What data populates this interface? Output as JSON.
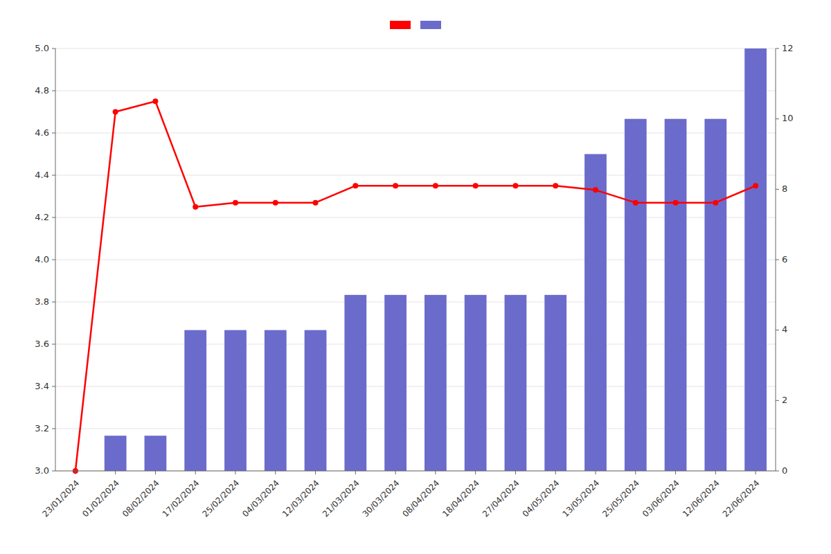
{
  "chart_data": {
    "type": "bar",
    "categories": [
      "23/01/2024",
      "01/02/2024",
      "08/02/2024",
      "17/02/2024",
      "25/02/2024",
      "04/03/2024",
      "12/03/2024",
      "21/03/2024",
      "30/03/2024",
      "08/04/2024",
      "18/04/2024",
      "27/04/2024",
      "04/05/2024",
      "13/05/2024",
      "25/05/2024",
      "03/06/2024",
      "12/06/2024",
      "22/06/2024"
    ],
    "series": [
      {
        "type": "line",
        "color": "#FF0000",
        "marker": "circle",
        "line_style": "solid",
        "axis": "y",
        "values": [
          3.0,
          4.7,
          4.75,
          4.25,
          4.27,
          4.27,
          4.27,
          4.35,
          4.35,
          4.35,
          4.35,
          4.35,
          4.35,
          4.33,
          4.27,
          4.27,
          4.27,
          4.35
        ]
      },
      {
        "type": "bar",
        "color": "#6B6BCC",
        "axis": "y2",
        "values": [
          0,
          1,
          1,
          4,
          4,
          4,
          4,
          5,
          5,
          5,
          5,
          5,
          5,
          9,
          10,
          10,
          10,
          12
        ]
      }
    ],
    "ylim": [
      3.0,
      5.0
    ],
    "yticks": [
      {
        "value": 3.0,
        "label": "3.0"
      },
      3.2,
      3.4,
      3.6,
      3.8,
      {
        "value": 4.0,
        "label": "4.0"
      },
      4.2,
      4.4,
      4.6,
      4.8,
      {
        "value": 5.0,
        "label": "5.0"
      }
    ],
    "y2lim": [
      0,
      12
    ],
    "y2ticks": [
      0,
      2,
      4,
      6,
      8,
      10,
      12
    ],
    "grid": true,
    "legend": "top"
  }
}
